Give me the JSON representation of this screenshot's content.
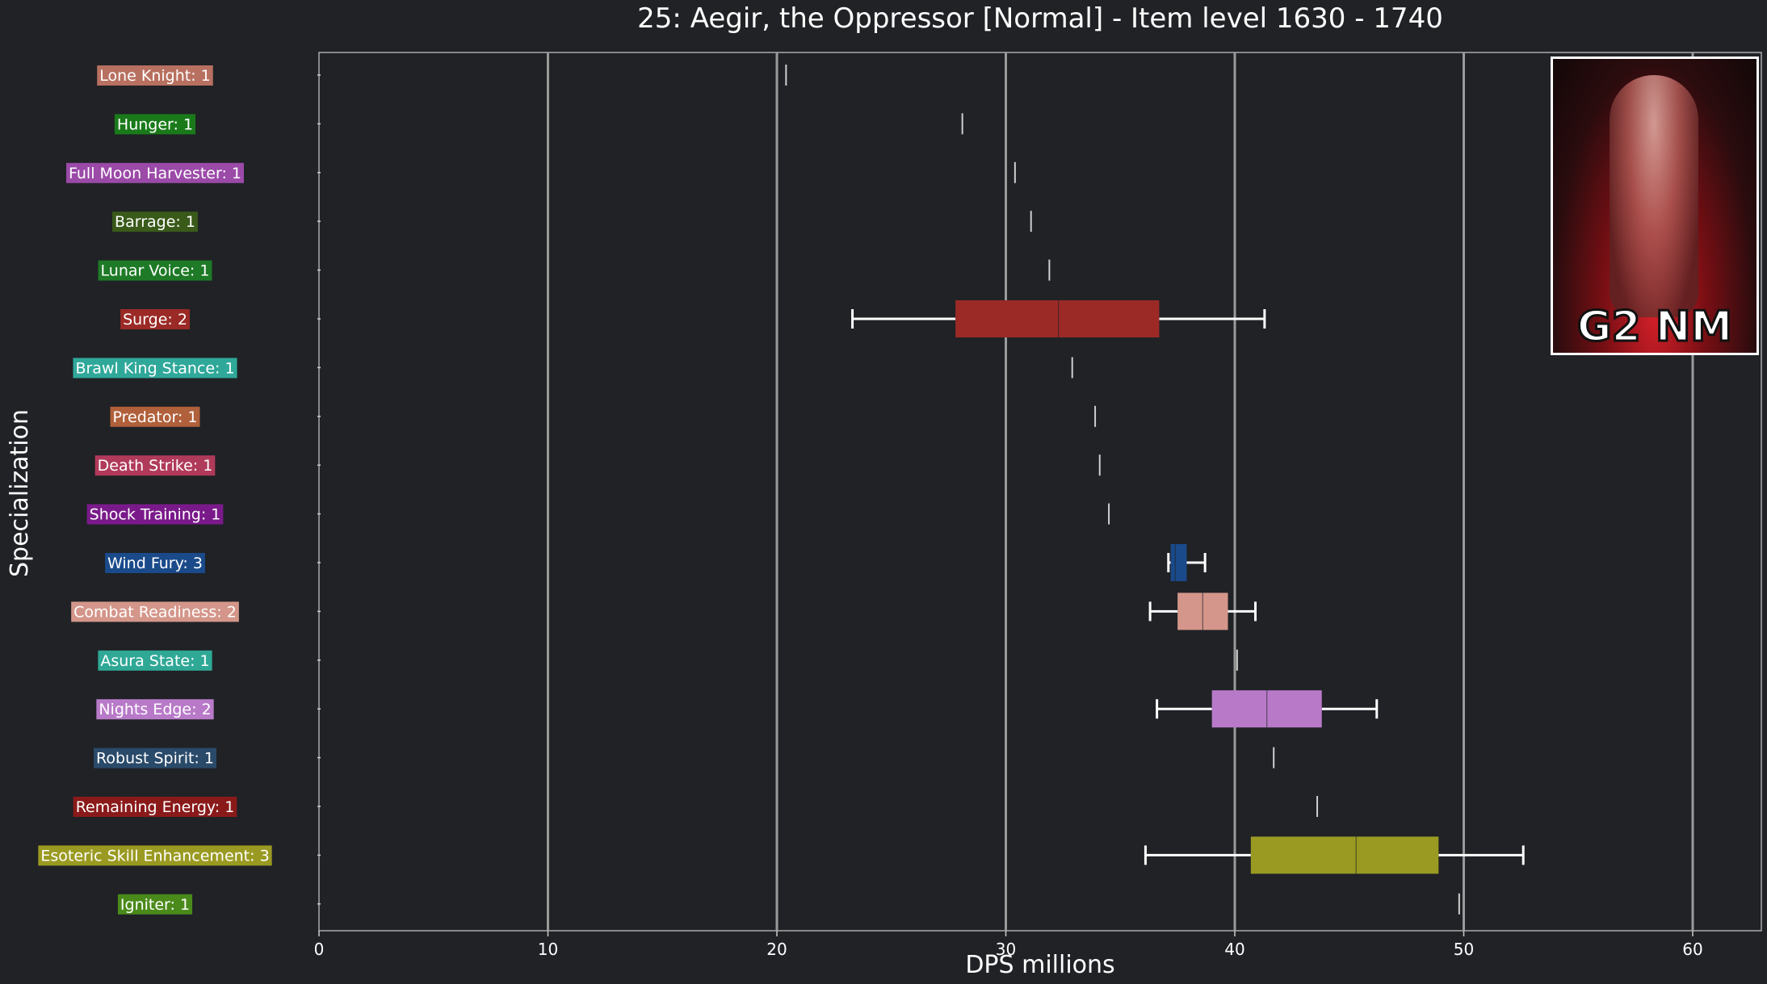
{
  "chart_data": {
    "type": "box",
    "title": "25: Aegir, the Oppressor [Normal] - Item level 1630 - 1740",
    "xlabel": "DPS millions",
    "ylabel": "Specialization",
    "xlim": [
      0,
      63
    ],
    "xticks": [
      0,
      10,
      20,
      30,
      40,
      50,
      60
    ],
    "grid": "vertical lines at x ticks",
    "categories": [
      {
        "label": "Lone Knight: 1",
        "color": "#b87060",
        "min": 20.4,
        "q1": 20.4,
        "median": 20.4,
        "q3": 20.4,
        "max": 20.4
      },
      {
        "label": "Hunger: 1",
        "color": "#1a7a1a",
        "min": 28.1,
        "q1": 28.1,
        "median": 28.1,
        "q3": 28.1,
        "max": 28.1
      },
      {
        "label": "Full Moon Harvester: 1",
        "color": "#9b4aa8",
        "min": 30.4,
        "q1": 30.4,
        "median": 30.4,
        "q3": 30.4,
        "max": 30.4
      },
      {
        "label": "Barrage: 1",
        "color": "#3a5a1a",
        "min": 31.1,
        "q1": 31.1,
        "median": 31.1,
        "q3": 31.1,
        "max": 31.1
      },
      {
        "label": "Lunar Voice: 1",
        "color": "#1e7a26",
        "min": 31.9,
        "q1": 31.9,
        "median": 31.9,
        "q3": 31.9,
        "max": 31.9
      },
      {
        "label": "Surge: 2",
        "color": "#9b2a26",
        "min": 23.3,
        "q1": 27.8,
        "median": 32.3,
        "q3": 36.7,
        "max": 41.3
      },
      {
        "label": "Brawl King Stance: 1",
        "color": "#2fa89a",
        "min": 32.9,
        "q1": 32.9,
        "median": 32.9,
        "q3": 32.9,
        "max": 32.9
      },
      {
        "label": "Predator: 1",
        "color": "#b0603a",
        "min": 33.9,
        "q1": 33.9,
        "median": 33.9,
        "q3": 33.9,
        "max": 33.9
      },
      {
        "label": "Death Strike: 1",
        "color": "#b03a5a",
        "min": 34.1,
        "q1": 34.1,
        "median": 34.1,
        "q3": 34.1,
        "max": 34.1
      },
      {
        "label": "Shock Training: 1",
        "color": "#7a1a8a",
        "min": 34.5,
        "q1": 34.5,
        "median": 34.5,
        "q3": 34.5,
        "max": 34.5
      },
      {
        "label": "Wind Fury: 3",
        "color": "#1a4a8a",
        "min": 37.1,
        "q1": 37.2,
        "median": 37.4,
        "q3": 37.9,
        "max": 38.7
      },
      {
        "label": "Combat Readiness: 2",
        "color": "#d4968a",
        "min": 36.3,
        "q1": 37.5,
        "median": 38.6,
        "q3": 39.7,
        "max": 40.9
      },
      {
        "label": "Asura State: 1",
        "color": "#2fa896",
        "min": 40.1,
        "q1": 40.1,
        "median": 40.1,
        "q3": 40.1,
        "max": 40.1
      },
      {
        "label": "Nights Edge: 2",
        "color": "#b87ac8",
        "min": 36.6,
        "q1": 39.0,
        "median": 41.4,
        "q3": 43.8,
        "max": 46.2
      },
      {
        "label": "Robust Spirit: 1",
        "color": "#2a4a6a",
        "min": 41.7,
        "q1": 41.7,
        "median": 41.7,
        "q3": 41.7,
        "max": 41.7
      },
      {
        "label": "Remaining Energy: 1",
        "color": "#8a1a1a",
        "min": 43.6,
        "q1": 43.6,
        "median": 43.6,
        "q3": 43.6,
        "max": 43.6
      },
      {
        "label": "Esoteric Skill Enhancement: 3",
        "color": "#9a9a22",
        "min": 36.1,
        "q1": 40.7,
        "median": 45.3,
        "q3": 48.9,
        "max": 52.6
      },
      {
        "label": "Igniter: 1",
        "color": "#4a8a1a",
        "min": 49.8,
        "q1": 49.8,
        "median": 49.8,
        "q3": 49.8,
        "max": 49.8
      }
    ]
  },
  "thumbnail": {
    "text": "G2 NM"
  }
}
